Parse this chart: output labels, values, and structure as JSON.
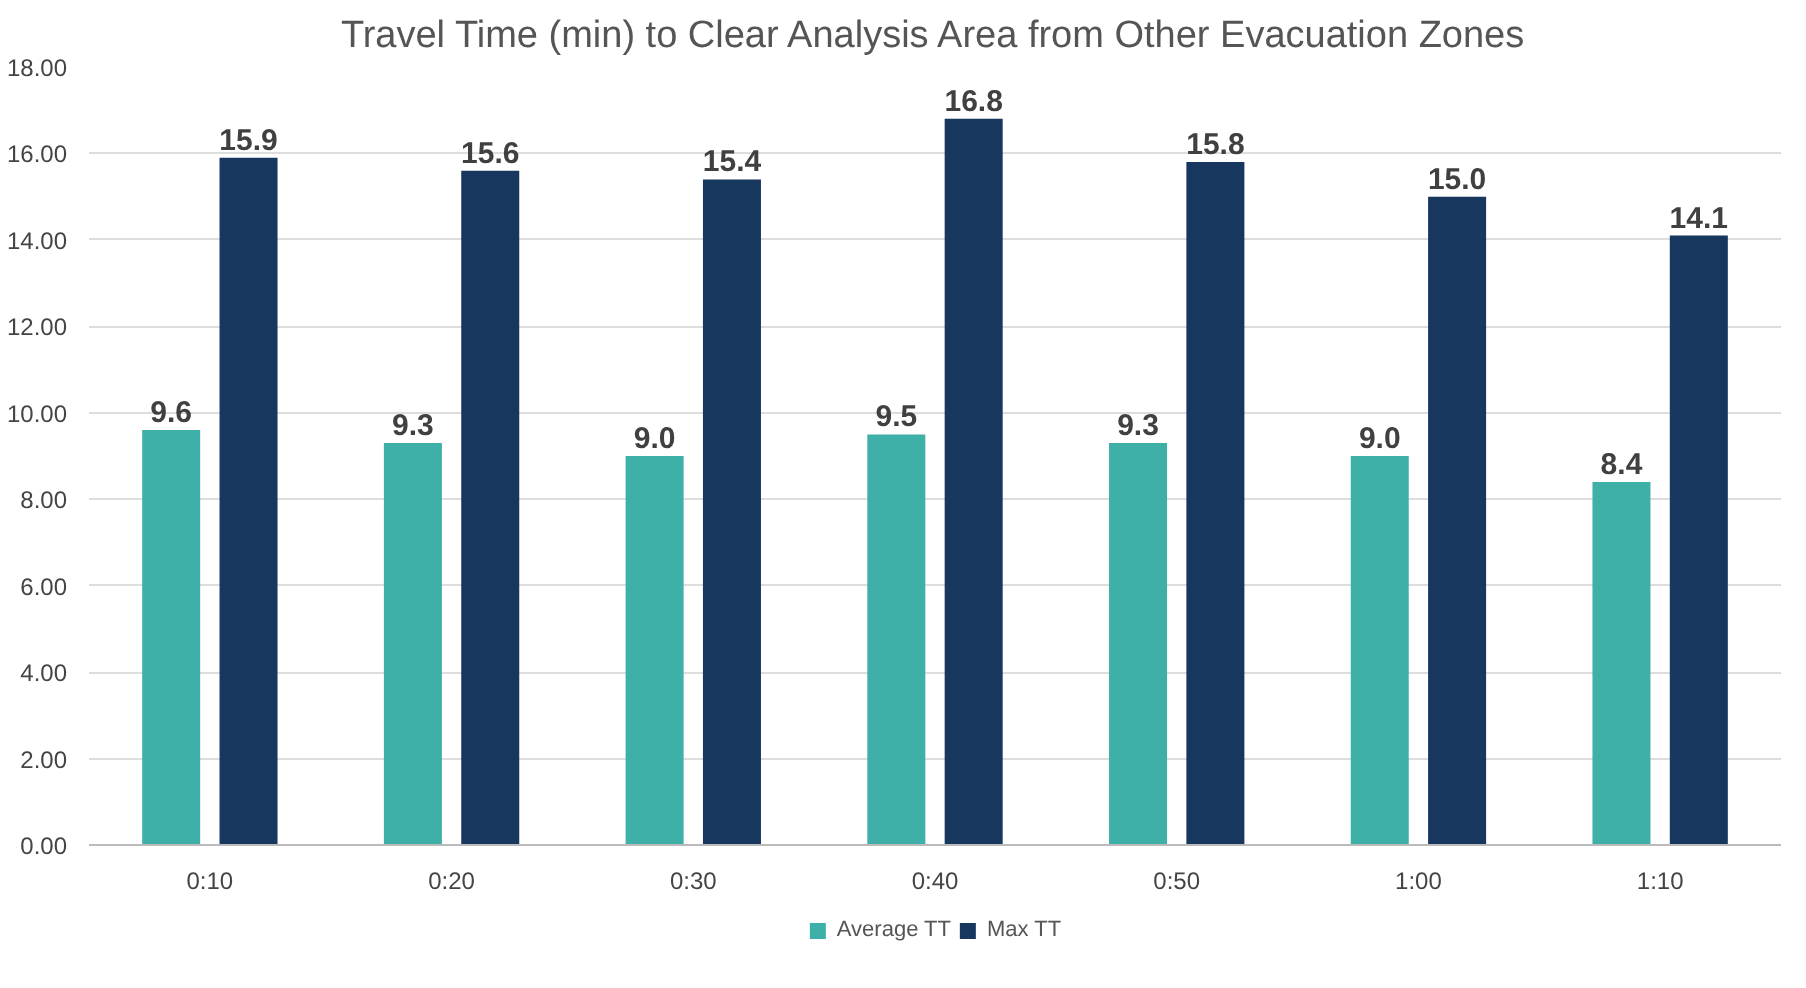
{
  "chart_data": {
    "type": "bar",
    "title": "Travel Time (min) to Clear Analysis Area from Other Evacuation Zones",
    "categories": [
      "0:10",
      "0:20",
      "0:30",
      "0:40",
      "0:50",
      "1:00",
      "1:10"
    ],
    "series": [
      {
        "name": "Average TT",
        "color": "#3fb0a8",
        "values": [
          9.6,
          9.3,
          9.0,
          9.5,
          9.3,
          9.0,
          8.4
        ],
        "value_labels": [
          "9.6",
          "9.3",
          "9.0",
          "9.5",
          "9.3",
          "9.0",
          "8.4"
        ]
      },
      {
        "name": "Max TT",
        "color": "#17375e",
        "values": [
          15.9,
          15.6,
          15.4,
          16.8,
          15.8,
          15.0,
          14.1
        ],
        "value_labels": [
          "15.9",
          "15.6",
          "15.4",
          "16.8",
          "15.8",
          "15.0",
          "14.1"
        ]
      }
    ],
    "ylim": [
      0,
      18
    ],
    "yticks": [
      {
        "value": 0,
        "label": "0.00"
      },
      {
        "value": 2,
        "label": "2.00"
      },
      {
        "value": 4,
        "label": "4.00"
      },
      {
        "value": 6,
        "label": "6.00"
      },
      {
        "value": 8,
        "label": "8.00"
      },
      {
        "value": 10,
        "label": "10.00"
      },
      {
        "value": 12,
        "label": "12.00"
      },
      {
        "value": 14,
        "label": "14.00"
      },
      {
        "value": 16,
        "label": "16.00"
      },
      {
        "value": 18,
        "label": "18.00"
      }
    ],
    "grid": "y",
    "legend": "bottom"
  }
}
